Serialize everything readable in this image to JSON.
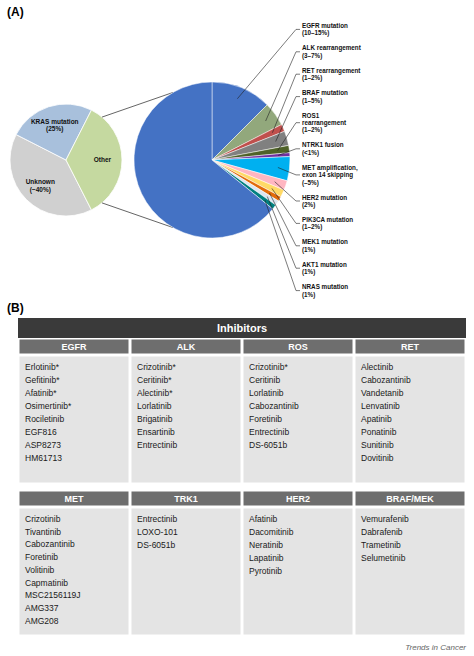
{
  "chart_data": [
    {
      "type": "pie",
      "annotations": [
        "(A)"
      ],
      "categories": [
        "Unknown\n(~40%)",
        "KRAS mutation\n(25%)",
        "Other"
      ],
      "values": [
        40,
        25,
        35
      ],
      "colors": [
        "#d0d0d0",
        "#a8c0dc",
        "#c5d9a0"
      ]
    },
    {
      "type": "pie",
      "categories": [
        "EGFR mutation\n(10–15%)",
        "ALK rearrangement\n(3–7%)",
        "RET rearrangement\n(1–2%)",
        "BRAF mutation\n(1–5%)",
        "ROS1\nrearrangement\n(1–2%)",
        "NTRK1 fusion\n(<1%)",
        "MET amplification,\nexon 14 skipping\n(–5%)",
        "HER2 mutation\n(2%)",
        "PIK3CA mutation\n(1–2%)",
        "MEK1 mutation\n(1%)",
        "AKT1 mutation\n(1%)",
        "NRAS mutation\n(1%)",
        null
      ],
      "values": [
        12.5,
        5,
        1.5,
        3,
        1.5,
        0.8,
        5,
        2,
        1.5,
        1,
        1,
        1,
        64.2
      ],
      "colors": [
        "#4472c4",
        "#92a87c",
        "#c0504d",
        "#808080",
        "#4f6228",
        "#7030a0",
        "#00b0f0",
        "#ffb6c1",
        "#ffd966",
        "#e26b0a",
        "#dce6f1",
        "#008080",
        "#4472c4"
      ]
    },
    {
      "type": "table",
      "title": "Inhibitors",
      "annotations": [
        "(B)",
        "Trends in Cancer"
      ],
      "rows": [
        {
          "headers": [
            "EGFR",
            "ALK",
            "ROS",
            "RET"
          ],
          "cells": [
            [
              "Erlotinib*",
              "Gefitinib*",
              "Afatinib*",
              "Osimertinib*",
              "Rociletinib",
              "EGF816",
              "ASP8273",
              "HM61713"
            ],
            [
              "Crizotinib*",
              "Ceritinib*",
              "Alectinib*",
              "Lorlatinib",
              "Brigatinib",
              "Ensartinib",
              "Entrectinib"
            ],
            [
              "Crizotinib*",
              "Ceritinib",
              "Lorlatinib",
              "Cabozantinib",
              "Foretinib",
              "Entrectinib",
              "DS-6051b"
            ],
            [
              "Alectinib",
              "Cabozantinib",
              "Vandetanib",
              "Lenvatinib",
              "Apatinib",
              "Ponatinib",
              "Sunitinib",
              "Dovitinib"
            ]
          ]
        },
        {
          "headers": [
            "MET",
            "TRK1",
            "HER2",
            "BRAF/MEK"
          ],
          "cells": [
            [
              "Crizotinib",
              "Tivantinib",
              "Cabozantinib",
              "Foretinib",
              "Volitinib",
              "Capmatinib",
              "MSC2156119J",
              "AMG337",
              "AMG208"
            ],
            [
              "Entrectinib",
              "LOXO-101",
              "DS-6051b"
            ],
            [
              "Afatinib",
              "Dacomitinib",
              "Neratinib",
              "Lapatinib",
              "Pyrotinib"
            ],
            [
              "Vemurafenib",
              "Dabrafenib",
              "Trametinib",
              "Selumetinib"
            ]
          ]
        }
      ]
    }
  ]
}
